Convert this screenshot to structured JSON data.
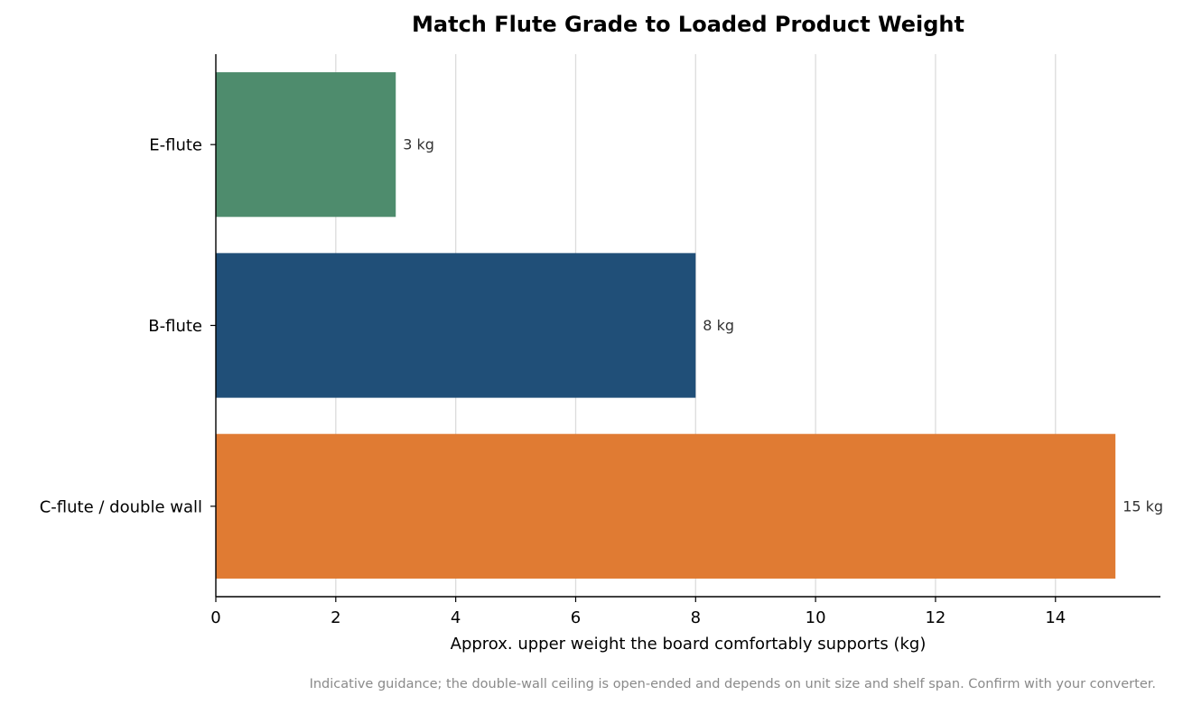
{
  "chart_data": {
    "type": "bar",
    "orientation": "horizontal",
    "title": "Match Flute Grade to Loaded Product Weight",
    "xlabel": "Approx. upper weight the board comfortably supports (kg)",
    "ylabel": "",
    "categories": [
      "E-flute",
      "B-flute",
      "C-flute / double wall"
    ],
    "values": [
      3,
      8,
      15
    ],
    "value_labels": [
      "3 kg",
      "8 kg",
      "15 kg"
    ],
    "colors": [
      "#4e8c6d",
      "#204f78",
      "#e07b33"
    ],
    "xlim": [
      0,
      15.75
    ],
    "xticks": [
      0,
      2,
      4,
      6,
      8,
      10,
      12,
      14
    ],
    "grid": "vertical",
    "footnote": "Indicative guidance; the double-wall ceiling is open-ended and depends on unit size and shelf span. Confirm with your converter."
  }
}
